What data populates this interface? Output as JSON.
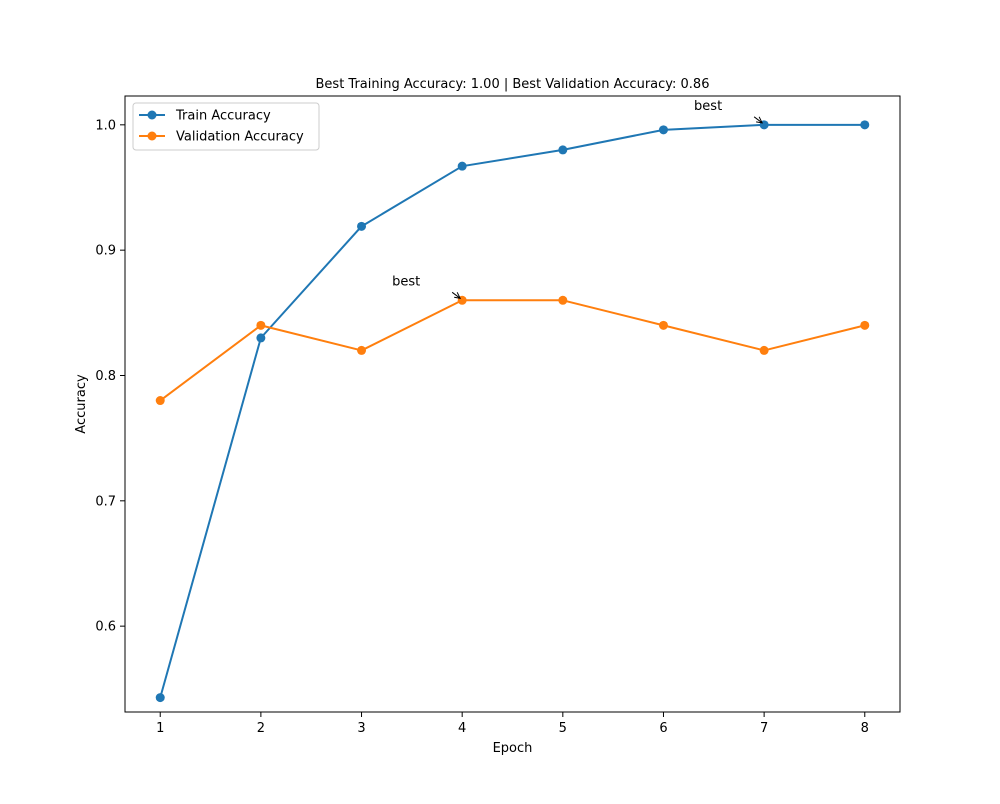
{
  "chart_data": {
    "type": "line",
    "title": "Best Training Accuracy: 1.00 | Best Validation Accuracy: 0.86",
    "xlabel": "Epoch",
    "ylabel": "Accuracy",
    "x": [
      1,
      2,
      3,
      4,
      5,
      6,
      7,
      8
    ],
    "x_ticks": [
      "1",
      "2",
      "3",
      "4",
      "5",
      "6",
      "7",
      "8"
    ],
    "y_ticks": [
      "0.6",
      "0.7",
      "0.8",
      "0.9",
      "1.0"
    ],
    "xlim": [
      0.65,
      8.35
    ],
    "ylim": [
      0.5315,
      1.023
    ],
    "grid": false,
    "legend_position": "upper-left",
    "series": [
      {
        "name": "Train Accuracy",
        "color": "#1f77b4",
        "values": [
          0.543,
          0.83,
          0.919,
          0.967,
          0.98,
          0.996,
          1.0,
          1.0
        ]
      },
      {
        "name": "Validation Accuracy",
        "color": "#ff7f0e",
        "values": [
          0.78,
          0.84,
          0.82,
          0.86,
          0.86,
          0.84,
          0.82,
          0.84
        ]
      }
    ],
    "annotations": [
      {
        "text": "best",
        "x": 7,
        "y": 1.0,
        "series": "Train Accuracy"
      },
      {
        "text": "best",
        "x": 4,
        "y": 0.86,
        "series": "Validation Accuracy"
      }
    ]
  }
}
